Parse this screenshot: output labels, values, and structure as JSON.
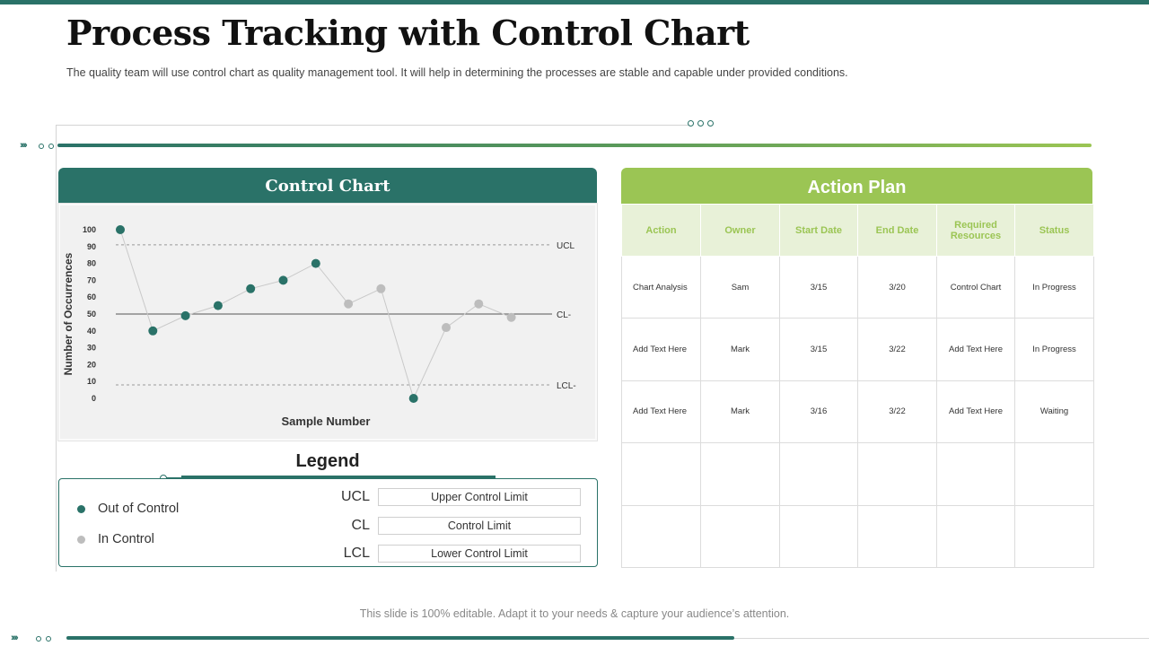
{
  "slide": {
    "title": "Process Tracking with Control Chart",
    "subtitle": "The quality team will use control chart as quality management tool. It will help in determining the processes are stable and capable under provided  conditions.",
    "footer": "This slide is 100% editable. Adapt it to your needs & capture your audience’s attention."
  },
  "colors": {
    "primary": "#2a7268",
    "accent": "#9bc554",
    "in_control": "#bdbdbd",
    "out_of_control": "#2a7268"
  },
  "control_chart": {
    "header": "Control Chart",
    "legend_title": "Legend"
  },
  "chart_data": {
    "type": "scatter",
    "title": "Control Chart",
    "xlabel": "Sample Number",
    "ylabel": "Number of Occurrences",
    "ylim": [
      0,
      100
    ],
    "y_ticks": [
      0,
      10,
      20,
      30,
      40,
      50,
      60,
      70,
      80,
      90,
      100
    ],
    "x": [
      1,
      2,
      3,
      4,
      5,
      6,
      7,
      8,
      9,
      10,
      11,
      12,
      13
    ],
    "series": [
      {
        "values": [
          100,
          40,
          49,
          55,
          65,
          70,
          80,
          56,
          65,
          0,
          42,
          56,
          48
        ],
        "status": [
          "out",
          "out",
          "out",
          "out",
          "out",
          "out",
          "out",
          "in",
          "in",
          "out",
          "in",
          "in",
          "in"
        ]
      }
    ],
    "control_lines": [
      {
        "label": "UCL",
        "value": 91,
        "style": "dashed"
      },
      {
        "label": "CL-",
        "value": 50,
        "style": "solid"
      },
      {
        "label": "LCL-",
        "value": 8,
        "style": "dashed"
      }
    ],
    "grid": false
  },
  "legend": {
    "items": [
      {
        "label": "Out of Control",
        "color": "#2a7268"
      },
      {
        "label": "In Control",
        "color": "#bdbdbd"
      }
    ],
    "definitions": [
      {
        "abbr": "UCL",
        "desc": "Upper  Control Limit"
      },
      {
        "abbr": "CL",
        "desc": "Control Limit"
      },
      {
        "abbr": "LCL",
        "desc": "Lower  Control Limit"
      }
    ]
  },
  "action_plan": {
    "header": "Action Plan",
    "columns": [
      "Action",
      "Owner",
      "Start Date",
      "End Date",
      "Required Resources",
      "Status"
    ],
    "rows": [
      [
        "Chart Analysis",
        "Sam",
        "3/15",
        "3/20",
        "Control Chart",
        "In Progress"
      ],
      [
        "Add Text Here",
        "Mark",
        "3/15",
        "3/22",
        "Add Text Here",
        "In Progress"
      ],
      [
        "Add Text Here",
        "Mark",
        "3/16",
        "3/22",
        "Add Text Here",
        "Waiting"
      ],
      [
        "",
        "",
        "",
        "",
        "",
        ""
      ],
      [
        "",
        "",
        "",
        "",
        "",
        ""
      ]
    ]
  }
}
